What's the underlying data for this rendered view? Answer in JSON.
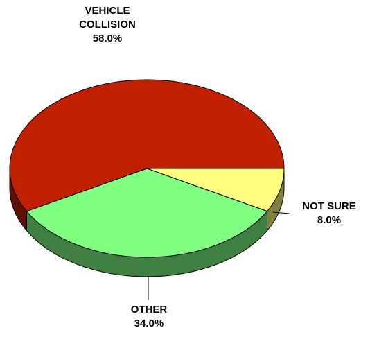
{
  "chart_data": {
    "type": "pie3d",
    "categories": [
      "NOT SURE",
      "OTHER",
      "VEHICLE COLLISION"
    ],
    "values": [
      8.0,
      34.0,
      58.0
    ],
    "value_labels": [
      "8.0%",
      "34.0%",
      "58.0%"
    ],
    "colors": [
      "#ffff80",
      "#80ff80",
      "#c02000"
    ]
  }
}
